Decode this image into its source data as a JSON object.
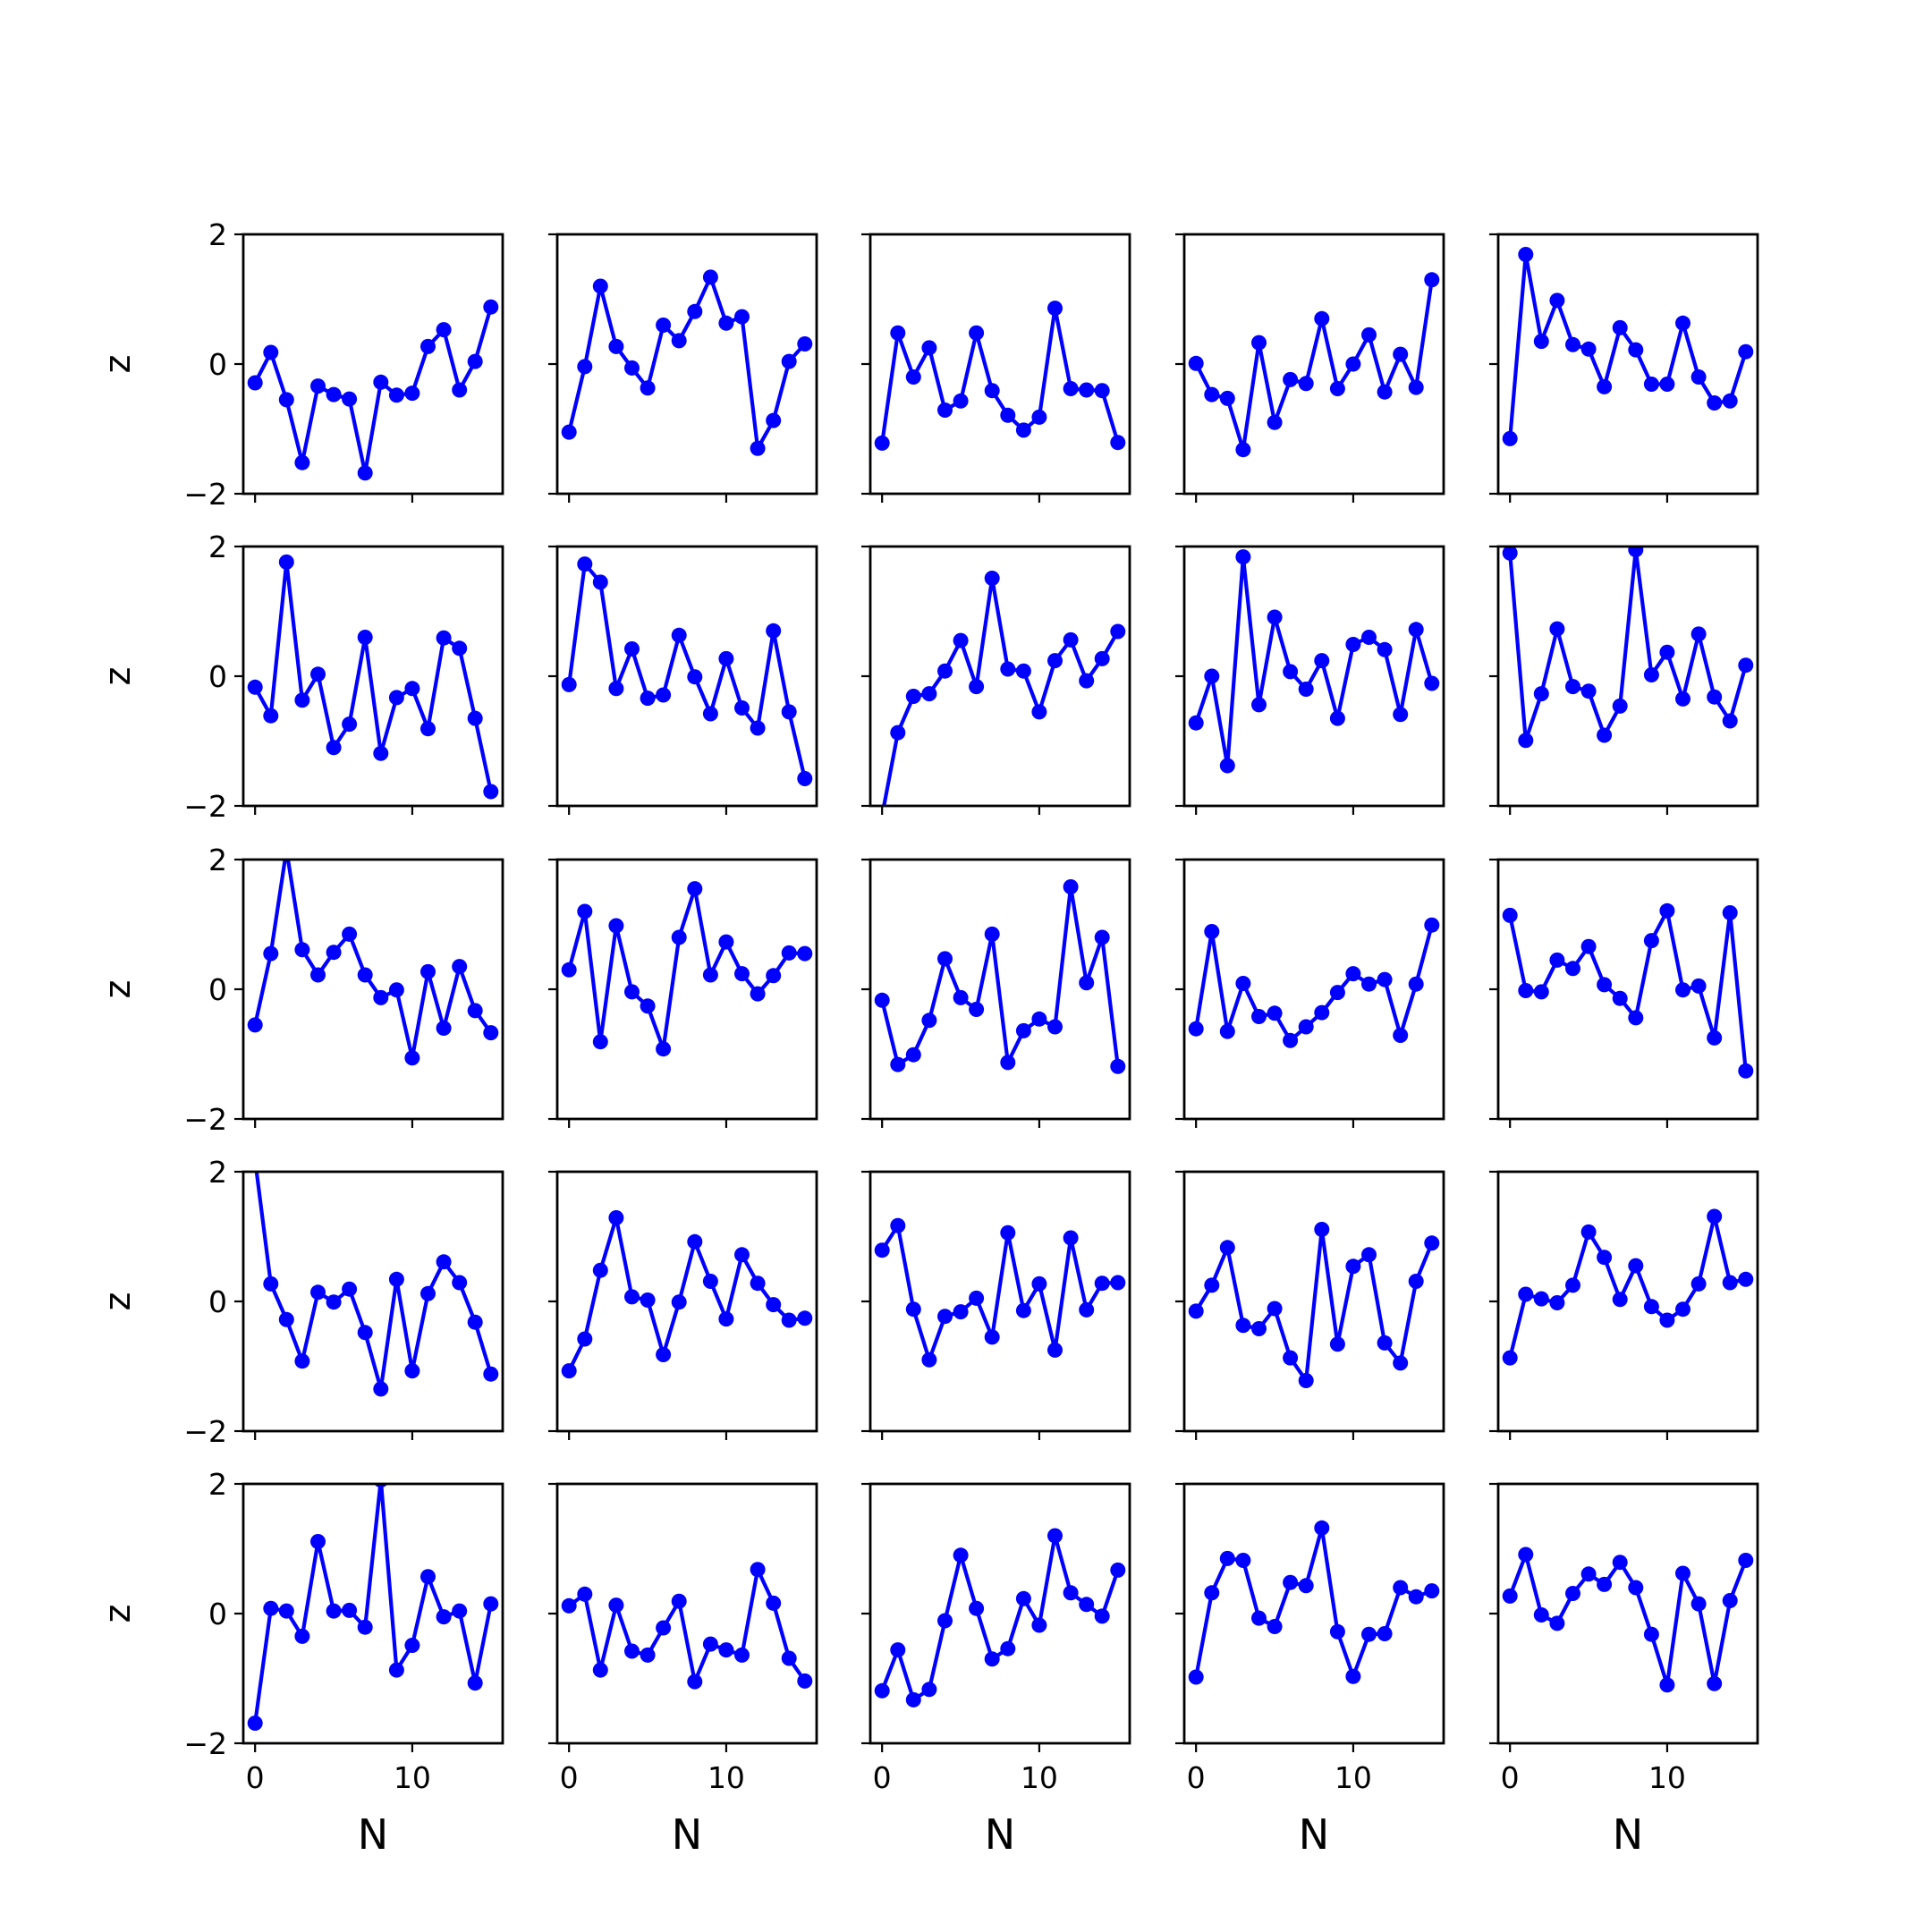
{
  "chart_data": {
    "type": "line",
    "layout": {
      "rows": 5,
      "cols": 5,
      "sharex": true,
      "sharey": true
    },
    "xlabel": "N",
    "ylabel": "z",
    "xlim": [
      -0.75,
      15.75
    ],
    "ylim": [
      -2,
      2
    ],
    "xticks": [
      0,
      10
    ],
    "yticks": [
      -2,
      0,
      2
    ],
    "xtick_labels": [
      "0",
      "10"
    ],
    "ytick_labels": [
      "−2",
      "0",
      "2"
    ],
    "x": [
      0,
      1,
      2,
      3,
      4,
      5,
      6,
      7,
      8,
      9,
      10,
      11,
      12,
      13,
      14,
      15
    ],
    "color": "#0000ff",
    "marker": "circle",
    "panels": [
      [
        -0.29,
        0.18,
        -0.55,
        -1.52,
        -0.34,
        -0.47,
        -0.54,
        -1.68,
        -0.28,
        -0.48,
        -0.45,
        0.27,
        0.53,
        -0.4,
        0.04,
        0.88
      ],
      [
        -1.05,
        -0.04,
        1.2,
        0.27,
        -0.06,
        -0.37,
        0.6,
        0.36,
        0.81,
        1.34,
        0.63,
        0.73,
        -1.3,
        -0.87,
        0.04,
        0.31
      ],
      [
        -1.22,
        0.48,
        -0.2,
        0.25,
        -0.71,
        -0.57,
        0.48,
        -0.41,
        -0.79,
        -1.02,
        -0.82,
        0.86,
        -0.38,
        -0.4,
        -0.41,
        -1.21
      ],
      [
        0.01,
        -0.47,
        -0.53,
        -1.32,
        0.33,
        -0.9,
        -0.24,
        -0.3,
        0.7,
        -0.38,
        0.0,
        0.45,
        -0.43,
        0.15,
        -0.36,
        1.3
      ],
      [
        -1.15,
        1.69,
        0.35,
        0.98,
        0.3,
        0.23,
        -0.35,
        0.56,
        0.22,
        -0.31,
        -0.31,
        0.63,
        -0.2,
        -0.6,
        -0.57,
        0.19
      ],
      [
        -0.17,
        -0.61,
        1.76,
        -0.37,
        0.03,
        -1.1,
        -0.74,
        0.6,
        -1.19,
        -0.33,
        -0.19,
        -0.81,
        0.59,
        0.43,
        -0.65,
        -1.78
      ],
      [
        -0.13,
        1.73,
        1.45,
        -0.19,
        0.42,
        -0.34,
        -0.29,
        0.63,
        -0.01,
        -0.58,
        0.27,
        -0.49,
        -0.8,
        0.7,
        -0.55,
        -1.58
      ],
      [
        -2.15,
        -0.87,
        -0.31,
        -0.27,
        0.08,
        0.55,
        -0.16,
        1.51,
        0.11,
        0.08,
        -0.55,
        0.24,
        0.56,
        -0.07,
        0.27,
        0.69
      ],
      [
        -0.72,
        0.0,
        -1.38,
        1.84,
        -0.44,
        0.91,
        0.07,
        -0.2,
        0.24,
        -0.65,
        0.49,
        0.6,
        0.41,
        -0.59,
        0.72,
        -0.11
      ],
      [
        1.9,
        -0.99,
        -0.27,
        0.73,
        -0.16,
        -0.23,
        -0.91,
        -0.46,
        1.95,
        0.02,
        0.37,
        -0.35,
        0.65,
        -0.32,
        -0.69,
        0.17
      ],
      [
        -0.55,
        0.55,
        2.15,
        0.61,
        0.22,
        0.57,
        0.85,
        0.22,
        -0.13,
        -0.01,
        -1.06,
        0.27,
        -0.6,
        0.35,
        -0.33,
        -0.67
      ],
      [
        0.3,
        1.2,
        -0.81,
        0.98,
        -0.04,
        -0.26,
        -0.92,
        0.8,
        1.55,
        0.22,
        0.73,
        0.24,
        -0.07,
        0.21,
        0.56,
        0.55
      ],
      [
        -0.17,
        -1.16,
        -1.01,
        -0.48,
        0.47,
        -0.13,
        -0.31,
        0.85,
        -1.13,
        -0.64,
        -0.46,
        -0.58,
        1.58,
        0.1,
        0.8,
        -1.19
      ],
      [
        -0.61,
        0.89,
        -0.65,
        0.09,
        -0.42,
        -0.37,
        -0.79,
        -0.58,
        -0.36,
        -0.05,
        0.24,
        0.08,
        0.15,
        -0.71,
        0.08,
        0.99
      ],
      [
        1.14,
        -0.02,
        -0.04,
        0.45,
        0.32,
        0.66,
        0.07,
        -0.14,
        -0.44,
        0.75,
        1.21,
        -0.01,
        0.05,
        -0.75,
        1.18,
        -1.26
      ]
    ]
  }
}
